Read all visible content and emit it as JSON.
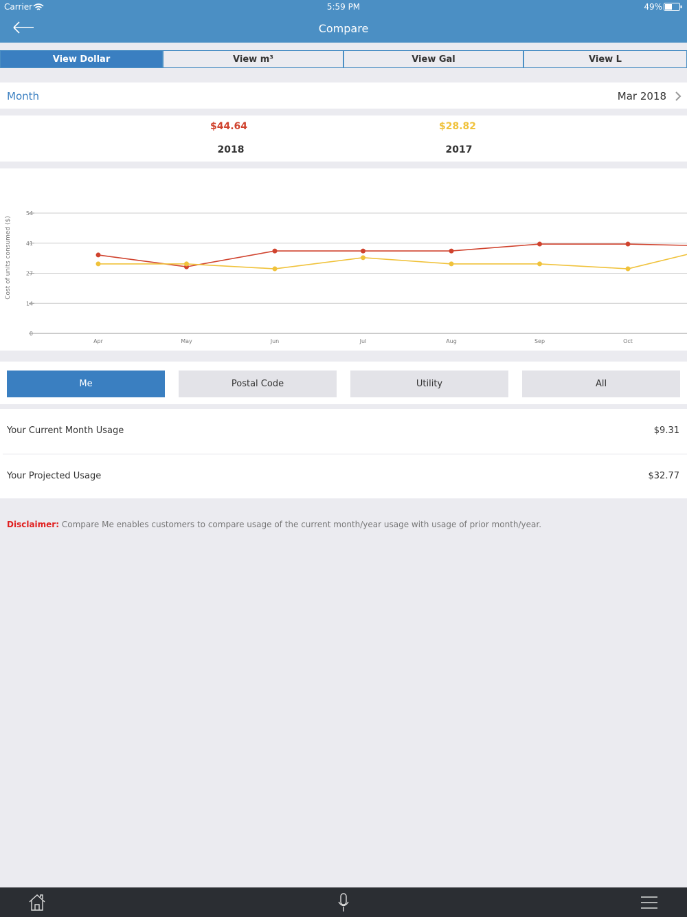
{
  "status_bar": {
    "carrier": "Carrier",
    "time": "5:59 PM",
    "battery": "49%"
  },
  "nav": {
    "title": "Compare"
  },
  "tabs": [
    "View Dollar",
    "View m³",
    "View Gal",
    "View L"
  ],
  "selected_tab": 0,
  "period": {
    "label": "Month",
    "value": "Mar 2018"
  },
  "summary": [
    {
      "amount": "$44.64"
    },
    {
      "amount": "$28.82"
    }
  ],
  "chart_data": {
    "type": "line",
    "y_label": "Cost of units consumed ($)",
    "categories": [
      "Apr",
      "May",
      "Jun",
      "Jul",
      "Aug",
      "Sep",
      "Oct",
      null
    ],
    "series": [
      {
        "name": "2018",
        "color": "#d0432e",
        "values": [
          35.2,
          29.9,
          37.0,
          37.0,
          37.0,
          40.1,
          40.1,
          39.2
        ]
      },
      {
        "name": "2017",
        "color": "#f0c23b",
        "values": [
          31.2,
          31.2,
          29.0,
          34.0,
          31.2,
          31.2,
          29.0,
          38.6
        ]
      }
    ],
    "ylim": [
      0,
      54
    ],
    "yticks": [
      0,
      {
        "value": 13.5,
        "label": "14"
      },
      27,
      {
        "value": 40.5,
        "label": "41"
      },
      54
    ],
    "grid": true
  },
  "filters": [
    "Me",
    "Postal Code",
    "Utility",
    "All"
  ],
  "selected_filter": 0,
  "usage": [
    {
      "label": "Your Current Month Usage",
      "value": "$9.31"
    },
    {
      "label": "Your Projected Usage",
      "value": "$32.77"
    }
  ],
  "disclaimer": {
    "label": "Disclaimer:",
    "text": "Compare Me enables customers to compare usage of the current month/year usage with usage of prior month/year."
  }
}
